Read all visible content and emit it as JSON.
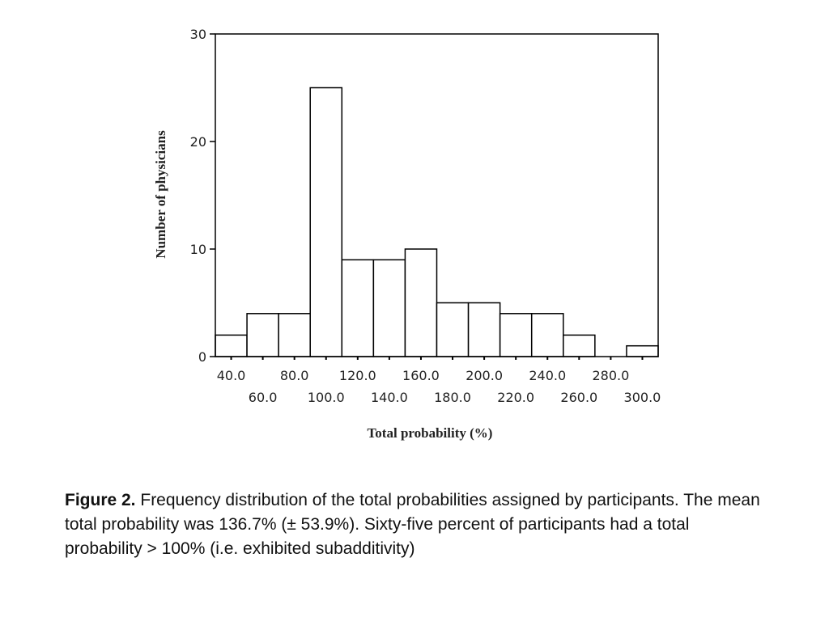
{
  "chart_data": {
    "type": "bar",
    "title": "",
    "xlabel": "Total probability (%)",
    "ylabel": "Number of physicians",
    "categories": [
      "40.0",
      "60.0",
      "80.0",
      "100.0",
      "120.0",
      "140.0",
      "160.0",
      "180.0",
      "200.0",
      "220.0",
      "240.0",
      "260.0",
      "280.0",
      "300.0"
    ],
    "values": [
      2,
      4,
      4,
      25,
      9,
      9,
      10,
      5,
      5,
      4,
      4,
      2,
      0,
      1
    ],
    "ylim": [
      0,
      30
    ],
    "yticks": [
      0,
      10,
      20,
      30
    ],
    "grid": false,
    "bar_fill": "#ffffff",
    "bar_stroke": "#000000"
  },
  "caption": {
    "label": "Figure 2.",
    "text": " Frequency distribution of the total probabilities assigned by participants. The mean total probability was 136.7% (± 53.9%). Sixty-five percent of participants had a total probability > 100% (i.e. exhibited subadditivity)"
  }
}
